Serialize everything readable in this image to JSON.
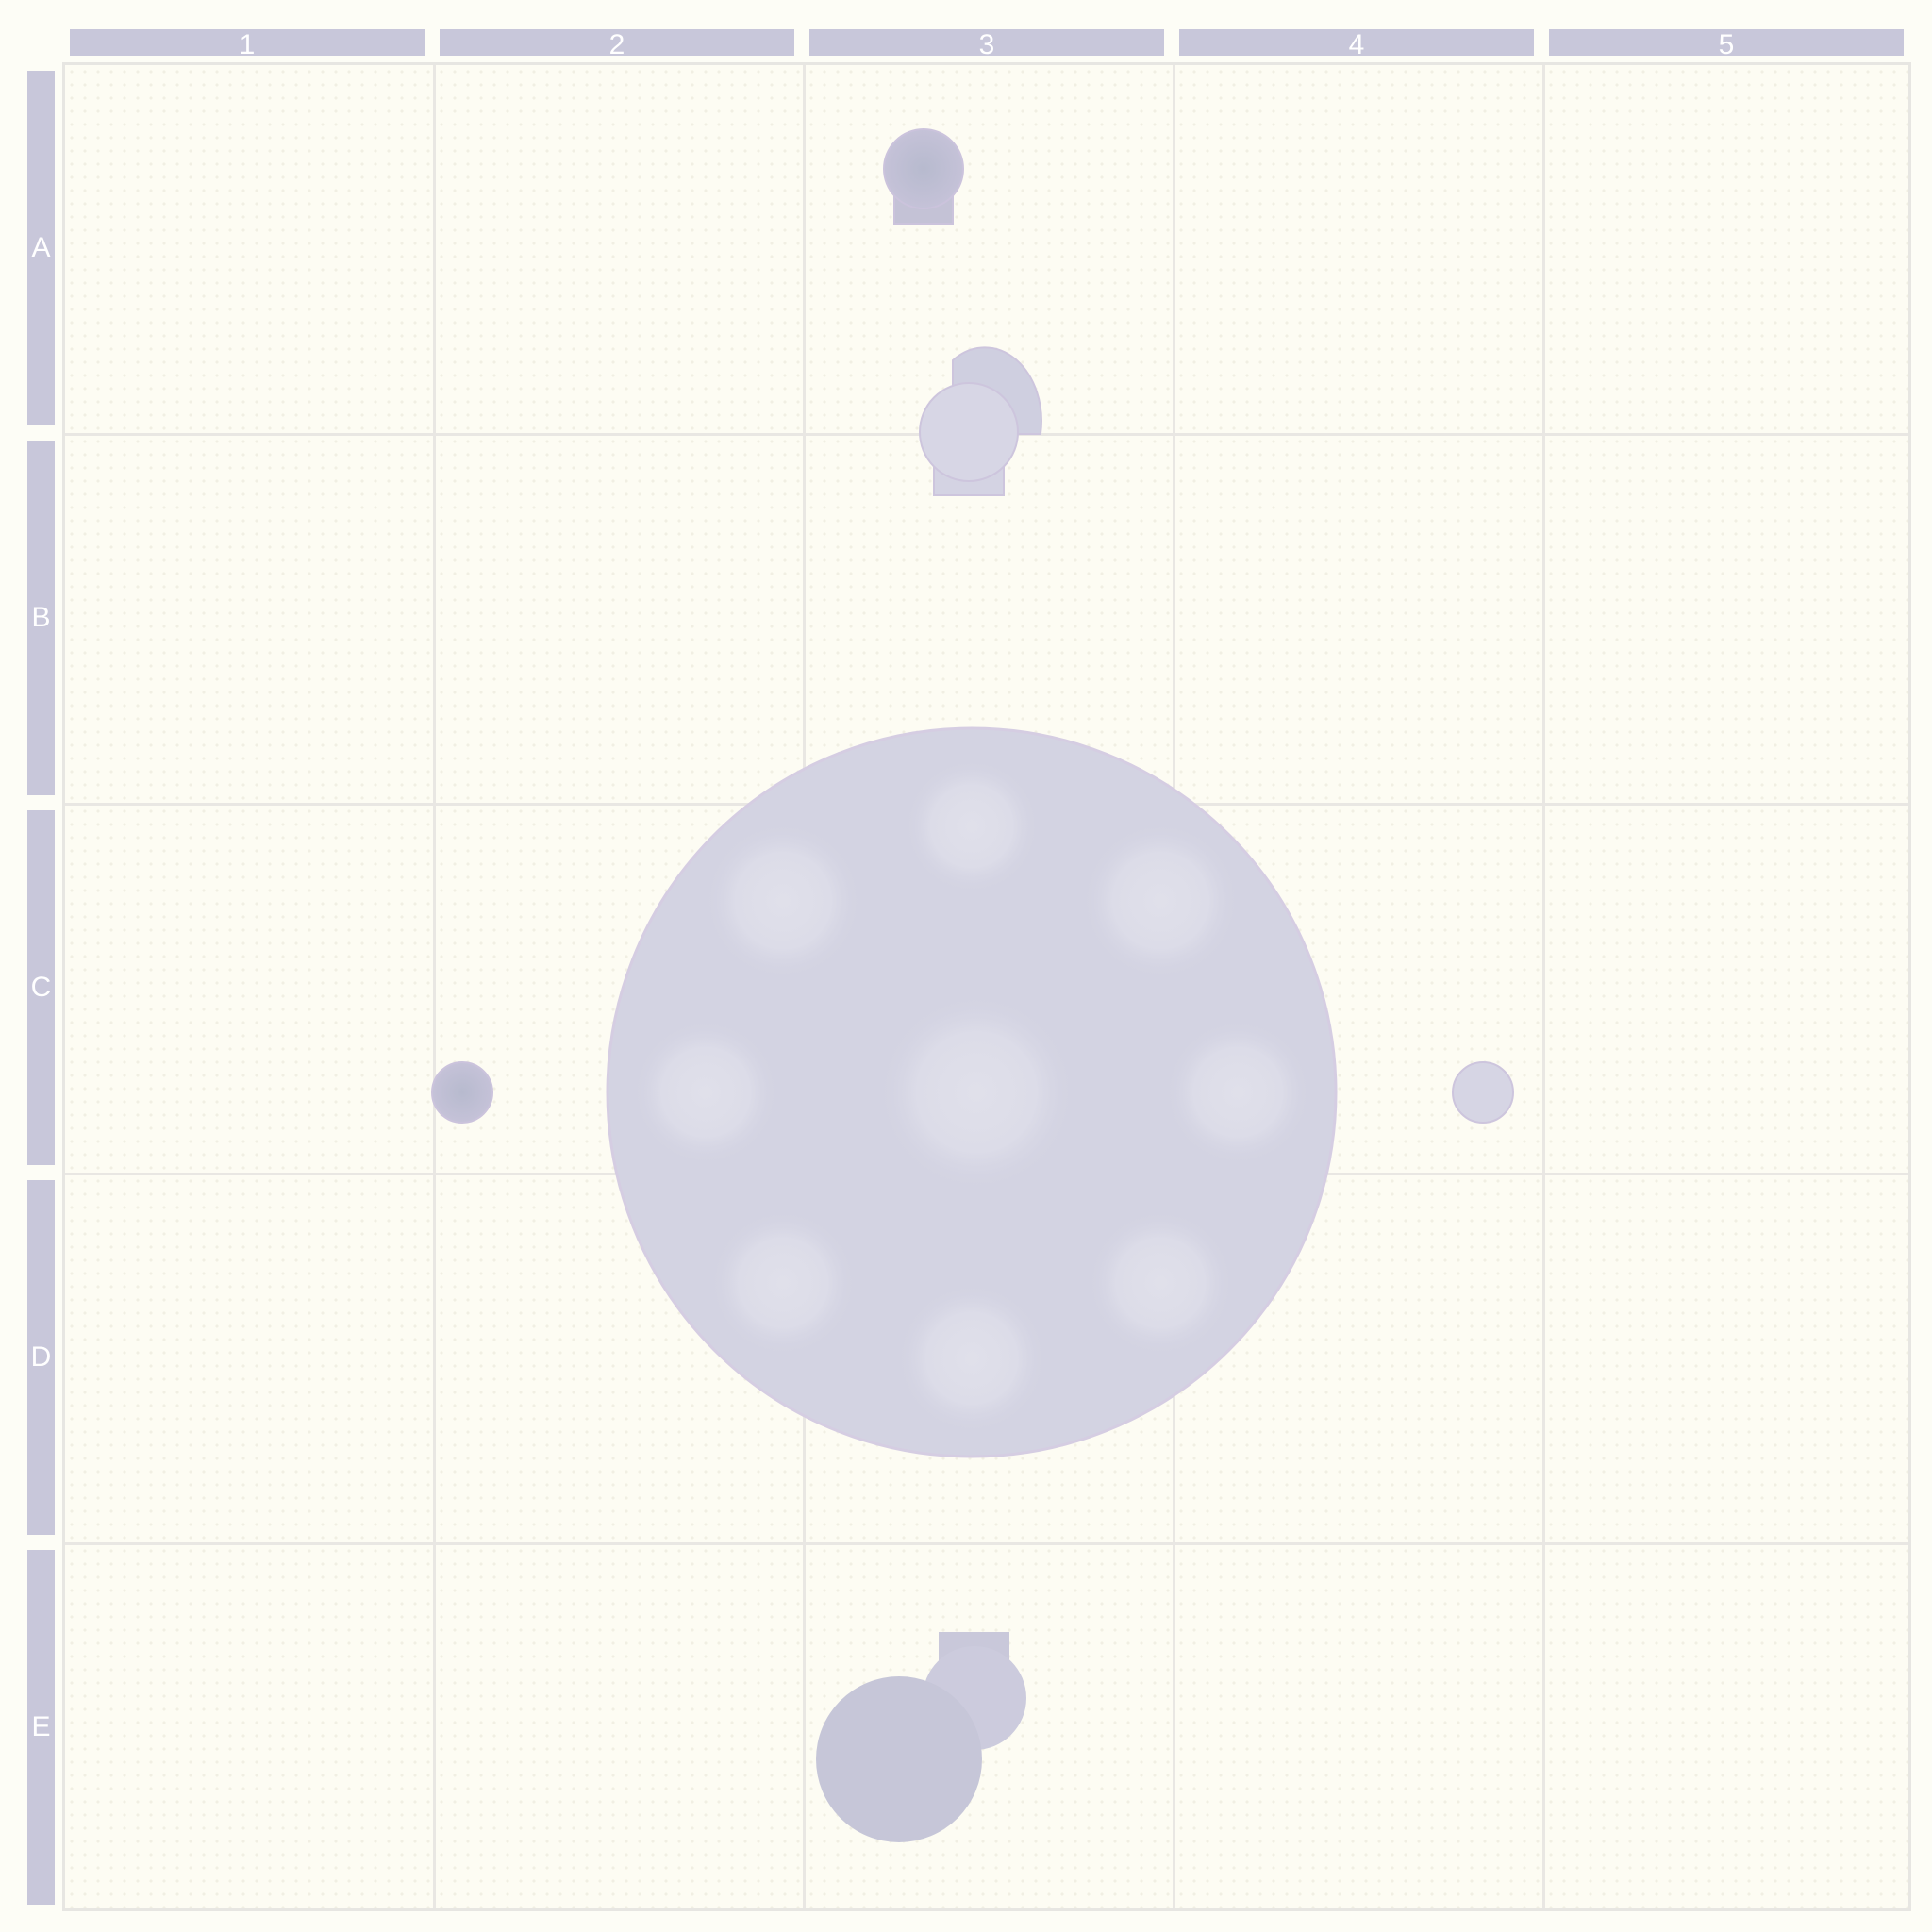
{
  "columns": [
    "1",
    "2",
    "3",
    "4",
    "5"
  ],
  "rows": [
    "A",
    "B",
    "C",
    "D",
    "E"
  ],
  "colors": {
    "background": "#fdfdf6",
    "header": "#c8c7da",
    "grid_line": "#e9e7e3",
    "token_fill": "#d3d3e2",
    "token_dark": "#bcbdd2",
    "token_stroke": "#cfc6dd"
  },
  "tokens": [
    {
      "name": "dark-token-a3",
      "kind": "figure"
    },
    {
      "name": "light-token-b3",
      "kind": "figure-with-cone"
    },
    {
      "name": "large-round-table",
      "kind": "table"
    },
    {
      "name": "small-marker-c2",
      "kind": "marker"
    },
    {
      "name": "small-marker-c4",
      "kind": "marker"
    },
    {
      "name": "large-token-e3",
      "kind": "figure-pair"
    }
  ]
}
